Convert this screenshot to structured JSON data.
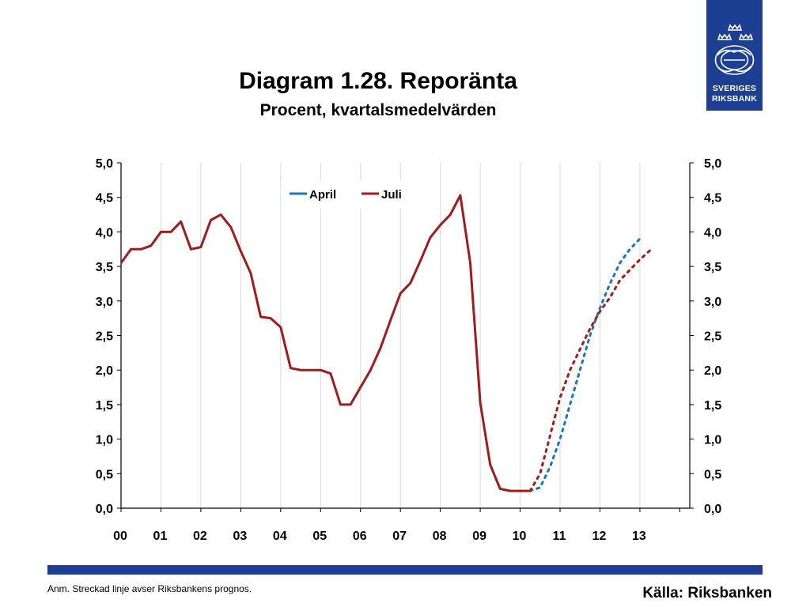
{
  "logo": {
    "line1": "SVERIGES",
    "line2": "RIKSBANK"
  },
  "note": "Anm. Streckad linje avser Riksbankens prognos.",
  "source": "Källa: Riksbanken",
  "colors": {
    "april": "#1b75bc",
    "juli": "#a01c1c",
    "brand": "#1c3f94"
  },
  "chart_data": {
    "type": "line",
    "title": "Diagram 1.28. Reporänta",
    "subtitle": "Procent, kvartalsmedelvärden",
    "xlabel": "",
    "ylabel": "",
    "x_ticks": [
      "00",
      "01",
      "02",
      "03",
      "04",
      "05",
      "06",
      "07",
      "08",
      "09",
      "10",
      "11",
      "12",
      "13"
    ],
    "y_ticks": [
      "0,0",
      "0,5",
      "1,0",
      "1,5",
      "2,0",
      "2,5",
      "3,0",
      "3,5",
      "4,0",
      "4,5",
      "5,0"
    ],
    "ylim": [
      0,
      5
    ],
    "xlim": [
      2000,
      2014.25
    ],
    "grid": "vertical",
    "dual_y_axis": true,
    "legend_position": "top-center",
    "series": [
      {
        "name": "April",
        "color": "#1b75bc",
        "style": "dashed-forecast",
        "forecast": [
          [
            2010.25,
            0.25
          ],
          [
            2010.5,
            0.3
          ],
          [
            2010.75,
            0.6
          ],
          [
            2011.0,
            1.0
          ],
          [
            2011.25,
            1.5
          ],
          [
            2011.5,
            2.0
          ],
          [
            2011.75,
            2.5
          ],
          [
            2012.0,
            2.9
          ],
          [
            2012.25,
            3.25
          ],
          [
            2012.5,
            3.55
          ],
          [
            2012.75,
            3.75
          ],
          [
            2013.0,
            3.9
          ]
        ]
      },
      {
        "name": "Juli",
        "color": "#a01c1c",
        "style": "solid-history-dashed-forecast",
        "history": [
          [
            2000.0,
            3.55
          ],
          [
            2000.25,
            3.75
          ],
          [
            2000.5,
            3.75
          ],
          [
            2000.75,
            3.8
          ],
          [
            2001.0,
            4.0
          ],
          [
            2001.25,
            4.0
          ],
          [
            2001.5,
            4.15
          ],
          [
            2001.75,
            3.75
          ],
          [
            2002.0,
            3.78
          ],
          [
            2002.25,
            4.17
          ],
          [
            2002.5,
            4.25
          ],
          [
            2002.75,
            4.07
          ],
          [
            2003.0,
            3.72
          ],
          [
            2003.25,
            3.4
          ],
          [
            2003.5,
            2.77
          ],
          [
            2003.75,
            2.75
          ],
          [
            2004.0,
            2.62
          ],
          [
            2004.25,
            2.03
          ],
          [
            2004.5,
            2.0
          ],
          [
            2004.75,
            2.0
          ],
          [
            2005.0,
            2.0
          ],
          [
            2005.25,
            1.95
          ],
          [
            2005.5,
            1.5
          ],
          [
            2005.75,
            1.5
          ],
          [
            2006.0,
            1.75
          ],
          [
            2006.25,
            2.0
          ],
          [
            2006.5,
            2.32
          ],
          [
            2006.75,
            2.72
          ],
          [
            2007.0,
            3.11
          ],
          [
            2007.25,
            3.26
          ],
          [
            2007.5,
            3.58
          ],
          [
            2007.75,
            3.92
          ],
          [
            2008.0,
            4.1
          ],
          [
            2008.25,
            4.25
          ],
          [
            2008.5,
            4.53
          ],
          [
            2008.75,
            3.55
          ],
          [
            2009.0,
            1.53
          ],
          [
            2009.25,
            0.63
          ],
          [
            2009.5,
            0.28
          ],
          [
            2009.75,
            0.25
          ],
          [
            2010.0,
            0.25
          ],
          [
            2010.25,
            0.25
          ]
        ],
        "forecast": [
          [
            2010.25,
            0.25
          ],
          [
            2010.5,
            0.5
          ],
          [
            2010.75,
            1.05
          ],
          [
            2011.0,
            1.6
          ],
          [
            2011.25,
            2.0
          ],
          [
            2011.5,
            2.3
          ],
          [
            2011.75,
            2.6
          ],
          [
            2012.0,
            2.85
          ],
          [
            2012.25,
            3.05
          ],
          [
            2012.5,
            3.3
          ],
          [
            2012.75,
            3.45
          ],
          [
            2013.0,
            3.6
          ],
          [
            2013.25,
            3.73
          ]
        ]
      }
    ]
  }
}
